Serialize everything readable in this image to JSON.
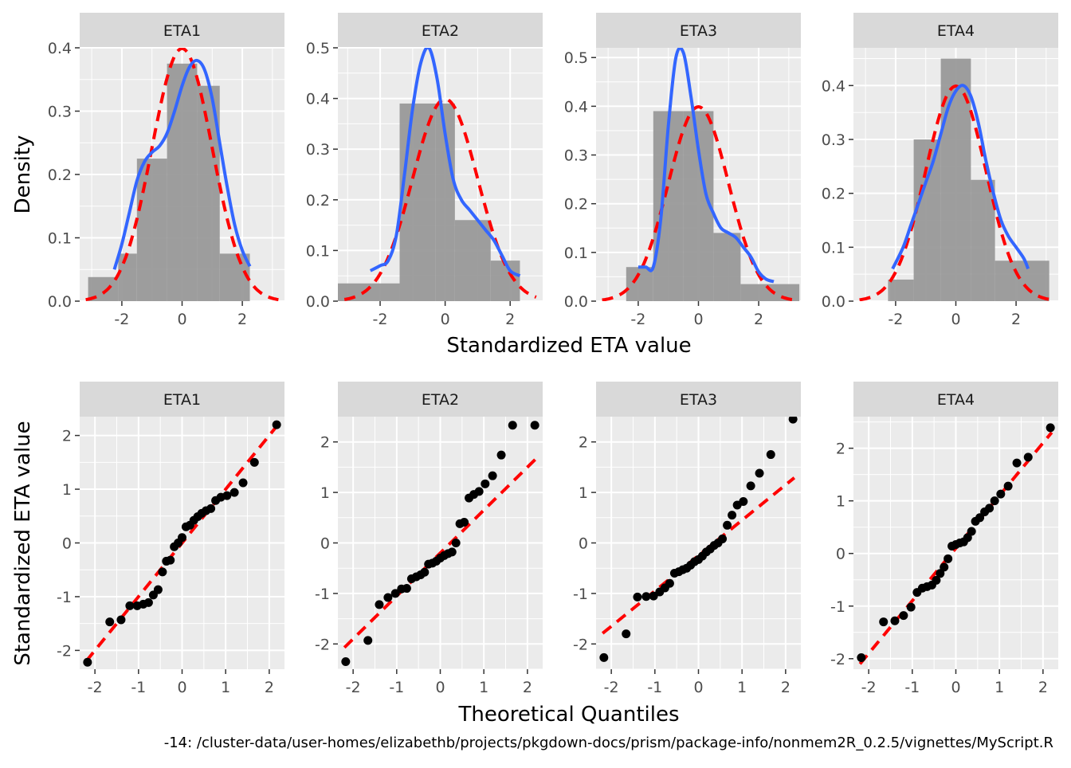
{
  "figure": {
    "top_xlabel": "Standardized ETA value",
    "top_ylabel": "Density",
    "bottom_xlabel": "Theoretical Quantiles",
    "bottom_ylabel": "Standardized ETA value",
    "footer": "-14: /cluster-data/user-homes/elizabethb/projects/pkgdown-docs/prism/package-info/nonmem2R_0.2.5/vignettes/MyScript.R"
  },
  "colors": {
    "panel_bg": "#ebebeb",
    "strip_bg": "#d9d9d9",
    "grid": "#ffffff",
    "hist_fill": "#999999",
    "density_line": "#3366ff",
    "normal_line": "#ff0000",
    "points": "#000000"
  },
  "chart_data": [
    {
      "type": "histogram+density",
      "panel": "ETA1",
      "xlim": [
        -3.4,
        3.4
      ],
      "ylim": [
        0,
        0.4
      ],
      "xticks": [
        -2,
        0,
        2
      ],
      "yticks": [
        0.0,
        0.1,
        0.2,
        0.3,
        0.4
      ],
      "bins": [
        {
          "x0": -3.12,
          "x1": -2.12,
          "y": 0.038
        },
        {
          "x0": -2.12,
          "x1": -1.5,
          "y": 0.075
        },
        {
          "x0": -1.5,
          "x1": -0.5,
          "y": 0.225
        },
        {
          "x0": -0.5,
          "x1": 0.5,
          "y": 0.375
        },
        {
          "x0": 0.5,
          "x1": 1.25,
          "y": 0.34
        },
        {
          "x0": 1.25,
          "x1": 2.25,
          "y": 0.075
        }
      ],
      "density": {
        "x": [
          -2.25,
          -2.0,
          -1.75,
          -1.5,
          -1.25,
          -1.0,
          -0.75,
          -0.5,
          -0.25,
          0.0,
          0.25,
          0.5,
          0.75,
          1.0,
          1.25,
          1.5,
          1.75,
          2.0,
          2.25
        ],
        "y": [
          0.05,
          0.09,
          0.14,
          0.19,
          0.22,
          0.235,
          0.245,
          0.265,
          0.3,
          0.34,
          0.37,
          0.38,
          0.365,
          0.32,
          0.25,
          0.18,
          0.12,
          0.08,
          0.055
        ]
      },
      "normal_curve": "standard normal density (dashed)"
    },
    {
      "type": "histogram+density",
      "panel": "ETA2",
      "xlim": [
        -3.3,
        3.0
      ],
      "ylim": [
        0,
        0.5
      ],
      "xticks": [
        -2,
        0,
        2
      ],
      "yticks": [
        0.0,
        0.1,
        0.2,
        0.3,
        0.4,
        0.5
      ],
      "bins": [
        {
          "x0": -3.3,
          "x1": -1.4,
          "y": 0.035
        },
        {
          "x0": -1.4,
          "x1": -0.3,
          "y": 0.39
        },
        {
          "x0": -0.3,
          "x1": 0.3,
          "y": 0.39
        },
        {
          "x0": 0.3,
          "x1": 1.4,
          "y": 0.16
        },
        {
          "x0": 1.4,
          "x1": 2.3,
          "y": 0.08
        }
      ],
      "density": {
        "x": [
          -2.3,
          -2.0,
          -1.75,
          -1.5,
          -1.25,
          -1.0,
          -0.75,
          -0.5,
          -0.25,
          0.0,
          0.25,
          0.5,
          0.75,
          1.0,
          1.25,
          1.5,
          1.75,
          2.0,
          2.3
        ],
        "y": [
          0.06,
          0.07,
          0.08,
          0.13,
          0.25,
          0.38,
          0.47,
          0.5,
          0.44,
          0.33,
          0.24,
          0.2,
          0.18,
          0.16,
          0.14,
          0.12,
          0.09,
          0.06,
          0.05
        ]
      },
      "normal_curve": "standard normal density (dashed)"
    },
    {
      "type": "histogram+density",
      "panel": "ETA3",
      "xlim": [
        -3.4,
        3.4
      ],
      "ylim": [
        0,
        0.52
      ],
      "xticks": [
        -2,
        0,
        2
      ],
      "yticks": [
        0.0,
        0.1,
        0.2,
        0.3,
        0.4,
        0.5
      ],
      "bins": [
        {
          "x0": -2.4,
          "x1": -1.5,
          "y": 0.07
        },
        {
          "x0": -1.5,
          "x1": -0.5,
          "y": 0.39
        },
        {
          "x0": -0.5,
          "x1": 0.5,
          "y": 0.39
        },
        {
          "x0": 0.5,
          "x1": 1.4,
          "y": 0.14
        },
        {
          "x0": 1.4,
          "x1": 3.35,
          "y": 0.035
        }
      ],
      "density": {
        "x": [
          -2.0,
          -1.75,
          -1.5,
          -1.25,
          -1.0,
          -0.75,
          -0.5,
          -0.25,
          0.0,
          0.25,
          0.5,
          0.75,
          1.0,
          1.25,
          1.5,
          1.75,
          2.0,
          2.25,
          2.5
        ],
        "y": [
          0.07,
          0.07,
          0.07,
          0.17,
          0.36,
          0.5,
          0.51,
          0.42,
          0.31,
          0.22,
          0.18,
          0.15,
          0.14,
          0.13,
          0.11,
          0.09,
          0.06,
          0.045,
          0.04
        ]
      },
      "normal_curve": "standard normal density (dashed)"
    },
    {
      "type": "histogram+density",
      "panel": "ETA4",
      "xlim": [
        -3.4,
        3.4
      ],
      "ylim": [
        0,
        0.47
      ],
      "xticks": [
        -2,
        0,
        2
      ],
      "yticks": [
        0.0,
        0.1,
        0.2,
        0.3,
        0.4
      ],
      "bins": [
        {
          "x0": -2.25,
          "x1": -2.2,
          "y": 0.04
        },
        {
          "x0": -2.2,
          "x1": -1.4,
          "y": 0.04
        },
        {
          "x0": -1.4,
          "x1": -0.5,
          "y": 0.3
        },
        {
          "x0": -0.5,
          "x1": 0.5,
          "y": 0.45
        },
        {
          "x0": 0.5,
          "x1": 1.3,
          "y": 0.225
        },
        {
          "x0": 1.3,
          "x1": 3.1,
          "y": 0.075
        }
      ],
      "density": {
        "x": [
          -2.1,
          -1.75,
          -1.5,
          -1.25,
          -1.0,
          -0.75,
          -0.5,
          -0.25,
          0.0,
          0.25,
          0.5,
          0.75,
          1.0,
          1.25,
          1.5,
          1.75,
          2.0,
          2.25,
          2.4
        ],
        "y": [
          0.06,
          0.1,
          0.14,
          0.18,
          0.22,
          0.26,
          0.31,
          0.36,
          0.39,
          0.4,
          0.38,
          0.33,
          0.26,
          0.2,
          0.15,
          0.12,
          0.1,
          0.08,
          0.06
        ]
      },
      "normal_curve": "standard normal density (dashed)"
    },
    {
      "type": "scatter",
      "panel": "ETA1",
      "xlim": [
        -2.35,
        2.35
      ],
      "ylim": [
        -2.35,
        2.35
      ],
      "xticks": [
        -2,
        -1,
        0,
        1,
        2
      ],
      "yticks": [
        -2,
        -1,
        0,
        1,
        2
      ],
      "x": [
        -2.17,
        -1.66,
        -1.4,
        -1.2,
        -1.03,
        -0.89,
        -0.77,
        -0.66,
        -0.55,
        -0.45,
        -0.36,
        -0.27,
        -0.18,
        -0.09,
        0.0,
        0.09,
        0.18,
        0.27,
        0.36,
        0.45,
        0.55,
        0.66,
        0.77,
        0.89,
        1.03,
        1.2,
        1.4,
        1.66,
        2.17
      ],
      "y": [
        -2.22,
        -1.47,
        -1.43,
        -1.17,
        -1.17,
        -1.14,
        -1.11,
        -0.97,
        -0.87,
        -0.54,
        -0.34,
        -0.32,
        -0.07,
        0.0,
        0.1,
        0.3,
        0.33,
        0.42,
        0.49,
        0.55,
        0.6,
        0.64,
        0.79,
        0.85,
        0.88,
        0.94,
        1.12,
        1.5,
        2.2
      ],
      "reference_line": {
        "intercept": 0.0,
        "slope": 1.0
      }
    },
    {
      "type": "scatter",
      "panel": "ETA2",
      "xlim": [
        -2.35,
        2.35
      ],
      "ylim": [
        -2.5,
        2.5
      ],
      "xticks": [
        -2,
        -1,
        0,
        1,
        2
      ],
      "yticks": [
        -2,
        -1,
        0,
        1,
        2
      ],
      "x": [
        -2.17,
        -1.66,
        -1.4,
        -1.2,
        -1.03,
        -0.89,
        -0.77,
        -0.66,
        -0.55,
        -0.45,
        -0.36,
        -0.27,
        -0.18,
        -0.09,
        0.0,
        0.09,
        0.18,
        0.27,
        0.36,
        0.45,
        0.55,
        0.66,
        0.77,
        0.89,
        1.03,
        1.2,
        1.4,
        1.66,
        2.17
      ],
      "y": [
        -2.35,
        -1.93,
        -1.22,
        -1.08,
        -1.0,
        -0.91,
        -0.9,
        -0.71,
        -0.67,
        -0.63,
        -0.58,
        -0.42,
        -0.4,
        -0.36,
        -0.3,
        -0.25,
        -0.21,
        -0.18,
        0.0,
        0.38,
        0.41,
        0.89,
        0.96,
        1.02,
        1.17,
        1.33,
        1.74,
        2.33,
        2.33
      ],
      "reference_line": {
        "intercept": -0.2,
        "slope": 0.85
      }
    },
    {
      "type": "scatter",
      "panel": "ETA3",
      "xlim": [
        -2.35,
        2.35
      ],
      "ylim": [
        -2.5,
        2.5
      ],
      "xticks": [
        -2,
        -1,
        0,
        1,
        2
      ],
      "yticks": [
        -2,
        -1,
        0,
        1,
        2
      ],
      "x": [
        -2.17,
        -1.66,
        -1.4,
        -1.2,
        -1.03,
        -0.89,
        -0.77,
        -0.66,
        -0.55,
        -0.45,
        -0.36,
        -0.27,
        -0.18,
        -0.09,
        0.0,
        0.09,
        0.18,
        0.27,
        0.36,
        0.45,
        0.55,
        0.66,
        0.77,
        0.89,
        1.03,
        1.2,
        1.4,
        1.66,
        2.17
      ],
      "y": [
        -2.27,
        -1.8,
        -1.07,
        -1.06,
        -1.05,
        -0.97,
        -0.89,
        -0.8,
        -0.6,
        -0.57,
        -0.53,
        -0.5,
        -0.44,
        -0.37,
        -0.33,
        -0.26,
        -0.18,
        -0.12,
        -0.05,
        0.0,
        0.08,
        0.35,
        0.55,
        0.75,
        0.82,
        1.13,
        1.38,
        1.75,
        2.45
      ],
      "reference_line": {
        "intercept": -0.25,
        "slope": 0.7
      }
    },
    {
      "type": "scatter",
      "panel": "ETA4",
      "xlim": [
        -2.35,
        2.35
      ],
      "ylim": [
        -2.2,
        2.6
      ],
      "xticks": [
        -2,
        -1,
        0,
        1,
        2
      ],
      "yticks": [
        -2,
        -1,
        0,
        1,
        2
      ],
      "x": [
        -2.17,
        -1.66,
        -1.4,
        -1.2,
        -1.03,
        -0.89,
        -0.77,
        -0.66,
        -0.55,
        -0.45,
        -0.36,
        -0.27,
        -0.18,
        -0.09,
        0.0,
        0.09,
        0.18,
        0.27,
        0.36,
        0.45,
        0.55,
        0.66,
        0.77,
        0.89,
        1.03,
        1.2,
        1.4,
        1.66,
        2.17
      ],
      "y": [
        -1.98,
        -1.3,
        -1.28,
        -1.18,
        -1.02,
        -0.74,
        -0.66,
        -0.63,
        -0.6,
        -0.51,
        -0.38,
        -0.26,
        -0.1,
        0.14,
        0.17,
        0.2,
        0.22,
        0.3,
        0.42,
        0.61,
        0.68,
        0.79,
        0.86,
        1.0,
        1.13,
        1.28,
        1.72,
        1.83,
        2.39
      ],
      "reference_line": {
        "intercept": 0.1,
        "slope": 1.0
      }
    }
  ]
}
